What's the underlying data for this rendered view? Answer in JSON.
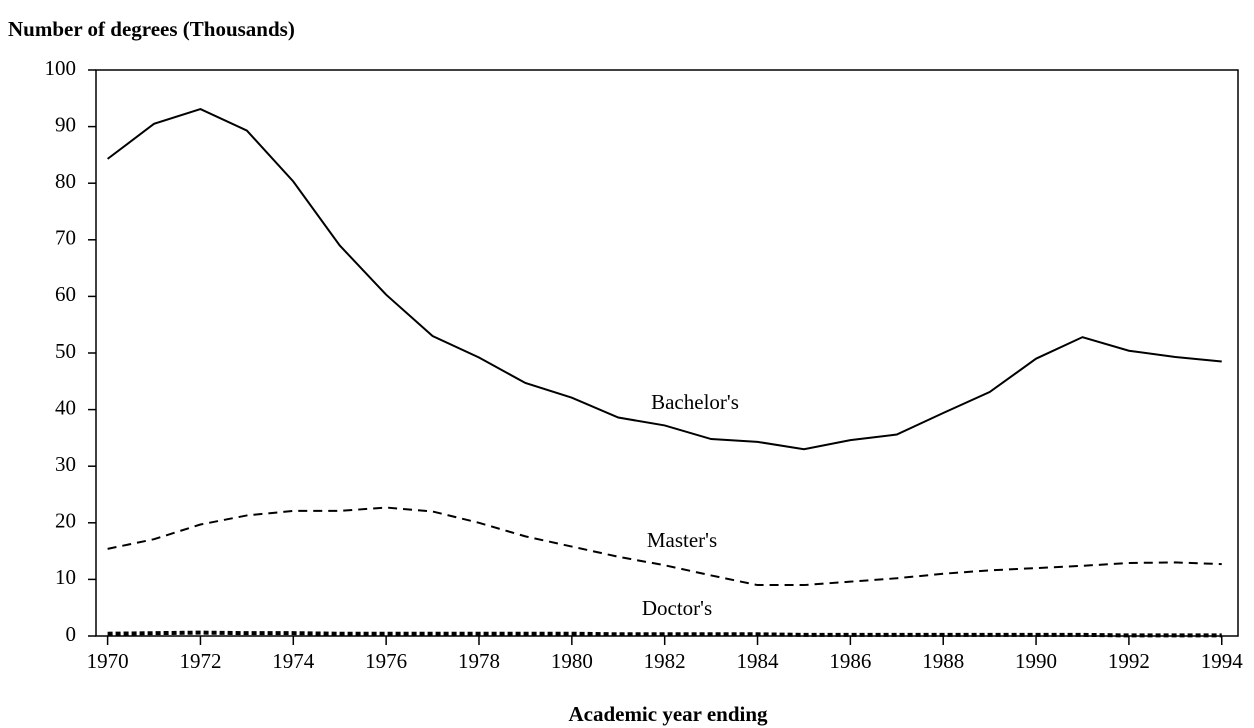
{
  "chart_data": {
    "type": "line",
    "title": "Number of degrees (Thousands)",
    "xlabel": "Academic year ending",
    "x": [
      1970,
      1971,
      1972,
      1973,
      1974,
      1975,
      1976,
      1977,
      1978,
      1979,
      1980,
      1981,
      1982,
      1983,
      1984,
      1985,
      1986,
      1987,
      1988,
      1989,
      1990,
      1991,
      1992,
      1993,
      1994
    ],
    "series": [
      {
        "name": "Bachelor's",
        "color": "#000000",
        "dash": "solid",
        "values": [
          84.3,
          90.5,
          93.1,
          89.3,
          80.3,
          69,
          60.3,
          53,
          49.2,
          44.7,
          42.1,
          38.6,
          37.2,
          34.8,
          34.3,
          33,
          34.6,
          35.6,
          39.4,
          43.1,
          49,
          52.8,
          50.4,
          49.3,
          48.5
        ]
      },
      {
        "name": "Master's",
        "color": "#000000",
        "dash": "dashed",
        "values": [
          15.4,
          17.1,
          19.7,
          21.3,
          22.1,
          22.1,
          22.7,
          22,
          20,
          17.6,
          15.8,
          14,
          12.5,
          10.7,
          9,
          9,
          9.6,
          10.2,
          11,
          11.6,
          12,
          12.4,
          12.9,
          13,
          12.7
        ]
      },
      {
        "name": "Doctor's",
        "color": "#000000",
        "dash": "dotted",
        "values": [
          0.4,
          0.5,
          0.6,
          0.5,
          0.5,
          0.4,
          0.4,
          0.4,
          0.4,
          0.4,
          0.4,
          0.3,
          0.3,
          0.3,
          0.3,
          0.2,
          0.2,
          0.2,
          0.2,
          0.2,
          0.2,
          0.2,
          0.1,
          0.1,
          0.1
        ]
      }
    ],
    "xlim": [
      1969.75,
      1994.35
    ],
    "xticks": [
      1970,
      1972,
      1974,
      1976,
      1978,
      1980,
      1982,
      1984,
      1986,
      1988,
      1990,
      1992,
      1994
    ],
    "ylim": [
      0,
      100
    ],
    "yticks": [
      0,
      10,
      20,
      30,
      40,
      50,
      60,
      70,
      80,
      90,
      100
    ],
    "grid": false
  }
}
